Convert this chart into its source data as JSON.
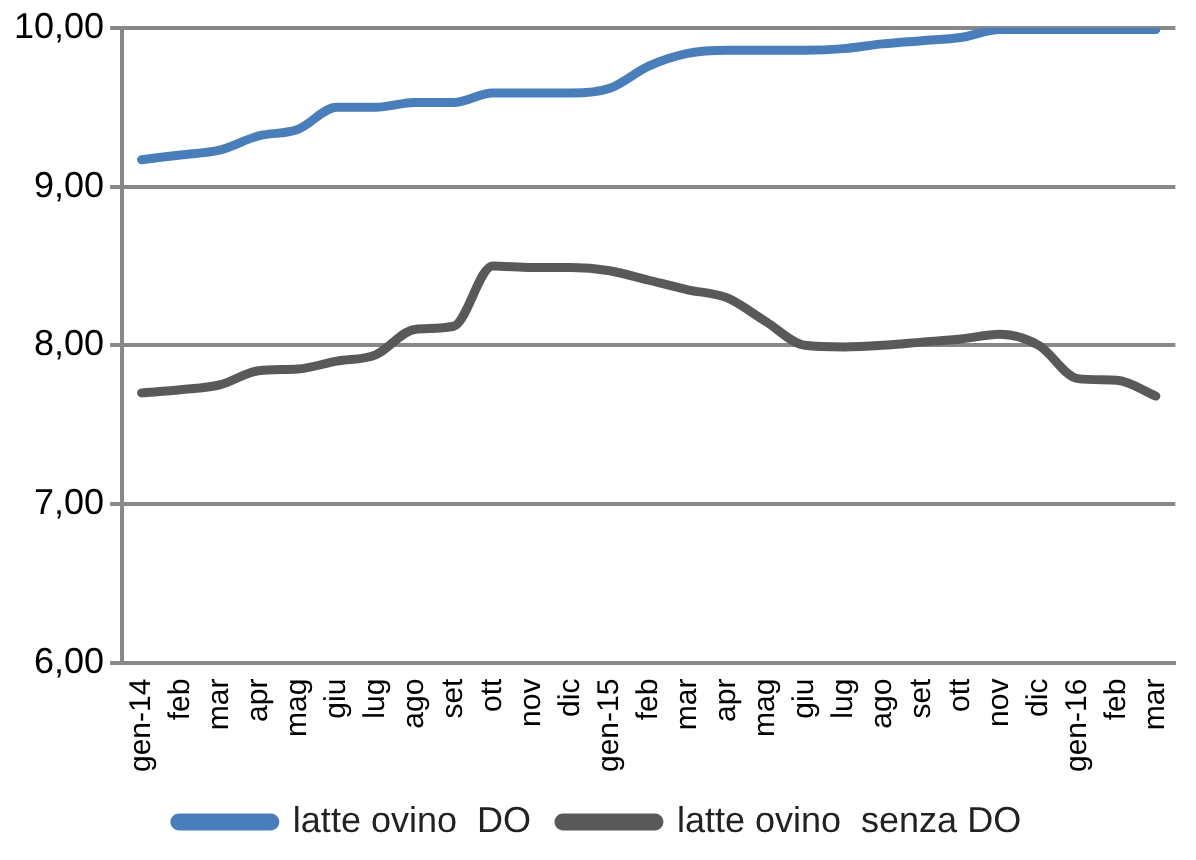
{
  "chart_data": {
    "type": "line",
    "categories": [
      "gen-14",
      "feb",
      "mar",
      "apr",
      "mag",
      "giu",
      "lug",
      "ago",
      "set",
      "ott",
      "nov",
      "dic",
      "gen-15",
      "feb",
      "mar",
      "apr",
      "mag",
      "giu",
      "lug",
      "ago",
      "set",
      "ott",
      "nov",
      "dic",
      "gen-16",
      "feb",
      "mar"
    ],
    "series": [
      {
        "name": "latte ovino  DO",
        "color": "#4a7ebb",
        "values": [
          9.17,
          9.2,
          9.23,
          9.32,
          9.36,
          9.5,
          9.5,
          9.53,
          9.53,
          9.59,
          9.59,
          9.59,
          9.62,
          9.76,
          9.84,
          9.86,
          9.86,
          9.86,
          9.87,
          9.9,
          9.92,
          9.94,
          9.99,
          9.99,
          9.99,
          9.99,
          9.99
        ]
      },
      {
        "name": "latte ovino  senza DO",
        "color": "#595959",
        "values": [
          7.7,
          7.72,
          7.75,
          7.84,
          7.85,
          7.9,
          7.94,
          8.1,
          8.12,
          8.5,
          8.49,
          8.49,
          8.47,
          8.41,
          8.35,
          8.3,
          8.15,
          8.0,
          7.99,
          8.0,
          8.02,
          8.04,
          8.07,
          8.0,
          7.79,
          7.78,
          7.68
        ]
      }
    ],
    "ylim": [
      6,
      10
    ],
    "yticks": [
      {
        "value": 6,
        "label": "6,00"
      },
      {
        "value": 7,
        "label": "7,00"
      },
      {
        "value": 8,
        "label": "8,00"
      },
      {
        "value": 9,
        "label": "9,00"
      },
      {
        "value": 10,
        "label": "10,00"
      }
    ],
    "grid": "y",
    "legend": "bottom",
    "marker": "none",
    "line_style": "solid"
  }
}
